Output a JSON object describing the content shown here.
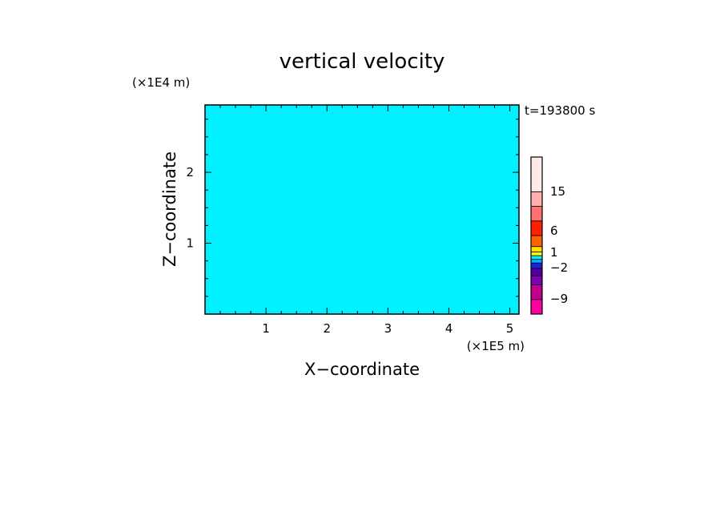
{
  "chart_data": {
    "type": "heatmap",
    "title": "vertical velocity",
    "xlabel": "X−coordinate",
    "ylabel": "Z−coordinate",
    "x_unit": "(×1E5 m)",
    "y_unit": "(×1E4 m)",
    "time_label": "t=193800 s",
    "xlim": [
      0,
      5.15
    ],
    "ylim": [
      0,
      2.95
    ],
    "x_ticks": [
      "1",
      "2",
      "3",
      "4",
      "5"
    ],
    "y_ticks": [
      "1",
      "2"
    ],
    "field_colors": {
      "positive": "#ffff00",
      "negative": "#00f0ff"
    },
    "colorbar": {
      "labels": [
        "15",
        "6",
        "1",
        "−2",
        "−9"
      ],
      "levels": [
        -9,
        -2,
        1,
        6,
        15
      ],
      "colors": [
        "#ff00a0",
        "#c0008c",
        "#8000b4",
        "#5000a0",
        "#2020e0",
        "#00b0ff",
        "#00f0ff",
        "#ffff00",
        "#ffe000",
        "#ff6000",
        "#ff2000",
        "#ff7070",
        "#ffb0b0",
        "#ffe8e8"
      ]
    }
  }
}
